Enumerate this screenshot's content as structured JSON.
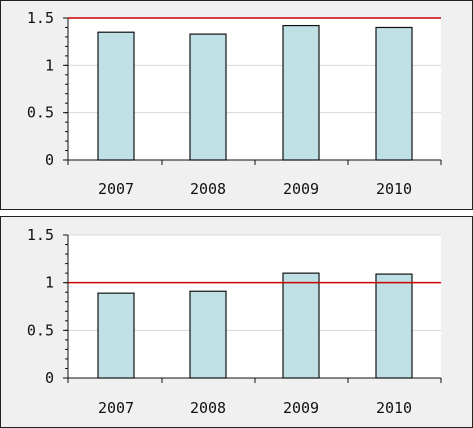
{
  "chart_data": [
    {
      "type": "bar",
      "categories": [
        "2007",
        "2008",
        "2009",
        "2010"
      ],
      "values": [
        1.35,
        1.33,
        1.42,
        1.4
      ],
      "ylim": [
        0,
        1.5
      ],
      "yticks": [
        "0",
        "0.5",
        "1",
        "1.5"
      ],
      "ytick_values": [
        0,
        0.5,
        1,
        1.5
      ],
      "reference_line": 1.5,
      "grid": true,
      "colors": {
        "bar": "#bfe0e4",
        "bar_edge": "#111111",
        "reference": "#cc0000",
        "grid": "#d8d8d8"
      }
    },
    {
      "type": "bar",
      "categories": [
        "2007",
        "2008",
        "2009",
        "2010"
      ],
      "values": [
        0.89,
        0.91,
        1.1,
        1.09
      ],
      "ylim": [
        0,
        1.5
      ],
      "yticks": [
        "0",
        "0.5",
        "1",
        "1.5"
      ],
      "ytick_values": [
        0,
        0.5,
        1,
        1.5
      ],
      "reference_line": 1.0,
      "grid": true,
      "colors": {
        "bar": "#bfe0e4",
        "bar_edge": "#111111",
        "reference": "#cc0000",
        "grid": "#d8d8d8"
      }
    }
  ]
}
